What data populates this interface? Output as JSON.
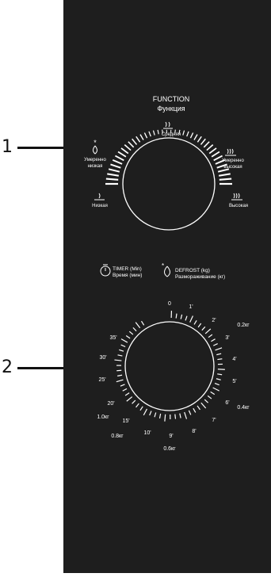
{
  "callouts": [
    "1",
    "2"
  ],
  "function_panel": {
    "title_en": "FUNCTION",
    "title_ru": "Функция",
    "levels": [
      {
        "en": "",
        "ru": "Низкая"
      },
      {
        "en": "Умеренно",
        "ru": "низкая"
      },
      {
        "en": "",
        "ru": "Средняя"
      },
      {
        "en": "Умеренно",
        "ru": "высокая"
      },
      {
        "en": "",
        "ru": "Высокая"
      }
    ]
  },
  "timer_panel": {
    "timer_en": "TIMER (Min)",
    "timer_ru": "Время (мин)",
    "defrost_en": "DEFROST (kg)",
    "defrost_ru": "Размораживание (кг)",
    "minute_marks": [
      "0",
      "1'",
      "2'",
      "3'",
      "4'",
      "5'",
      "6'",
      "7'",
      "8'",
      "9'",
      "10'",
      "15'",
      "20'",
      "25'",
      "30'",
      "35'"
    ],
    "weight_marks": [
      "0.2кг",
      "0.4кг",
      "0.6кг",
      "0.8кг",
      "1.0кг"
    ]
  }
}
